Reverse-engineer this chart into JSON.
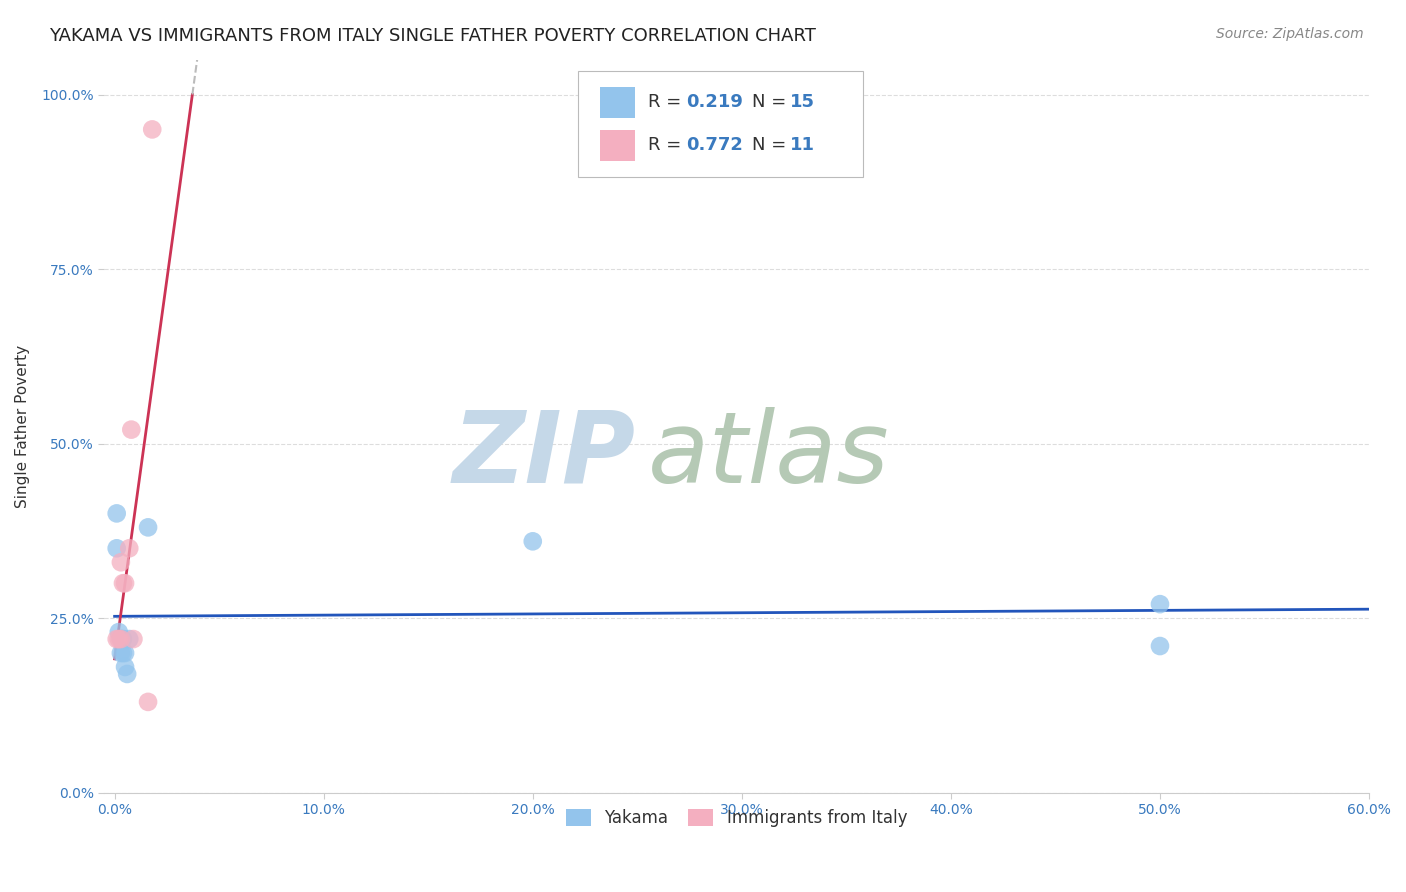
{
  "title": "YAKAMA VS IMMIGRANTS FROM ITALY SINGLE FATHER POVERTY CORRELATION CHART",
  "source": "Source: ZipAtlas.com",
  "ylabel": "Single Father Poverty",
  "xlabel_ticks": [
    "0.0%",
    "10.0%",
    "20.0%",
    "30.0%",
    "40.0%",
    "50.0%",
    "60.0%"
  ],
  "xlabel_vals": [
    0.0,
    0.1,
    0.2,
    0.3,
    0.4,
    0.5,
    0.6
  ],
  "ylabel_ticks": [
    "0.0%",
    "25.0%",
    "50.0%",
    "75.0%",
    "100.0%"
  ],
  "ylabel_vals": [
    0.0,
    0.25,
    0.5,
    0.75,
    1.0
  ],
  "xlim": [
    -0.005,
    0.6
  ],
  "ylim": [
    0.0,
    1.05
  ],
  "yakama_x": [
    0.001,
    0.001,
    0.002,
    0.003,
    0.003,
    0.004,
    0.004,
    0.005,
    0.005,
    0.006,
    0.007,
    0.016,
    0.2,
    0.5,
    0.5
  ],
  "yakama_y": [
    0.4,
    0.35,
    0.23,
    0.22,
    0.2,
    0.22,
    0.2,
    0.2,
    0.18,
    0.17,
    0.22,
    0.38,
    0.36,
    0.27,
    0.21
  ],
  "italy_x": [
    0.001,
    0.002,
    0.003,
    0.003,
    0.004,
    0.005,
    0.007,
    0.008,
    0.009,
    0.016,
    0.018
  ],
  "italy_y": [
    0.22,
    0.22,
    0.33,
    0.22,
    0.3,
    0.3,
    0.35,
    0.52,
    0.22,
    0.13,
    0.95
  ],
  "yakama_color": "#93c4ec",
  "italy_color": "#f4afc0",
  "yakama_line_color": "#2255bb",
  "italy_line_color": "#cc3355",
  "italy_dash_color": "#bbbbbb",
  "yakama_R": 0.219,
  "yakama_N": 15,
  "italy_R": 0.772,
  "italy_N": 11,
  "legend_label_yakama": "Yakama",
  "legend_label_italy": "Immigrants from Italy",
  "watermark_zip": "ZIP",
  "watermark_atlas": "atlas",
  "watermark_color_zip": "#c8d8ea",
  "watermark_color_atlas": "#b8d0b8",
  "grid_color": "#dddddd",
  "bg_color": "#ffffff",
  "title_fontsize": 13,
  "axis_label_fontsize": 11,
  "tick_fontsize": 10,
  "source_fontsize": 10,
  "scatter_size": 180
}
